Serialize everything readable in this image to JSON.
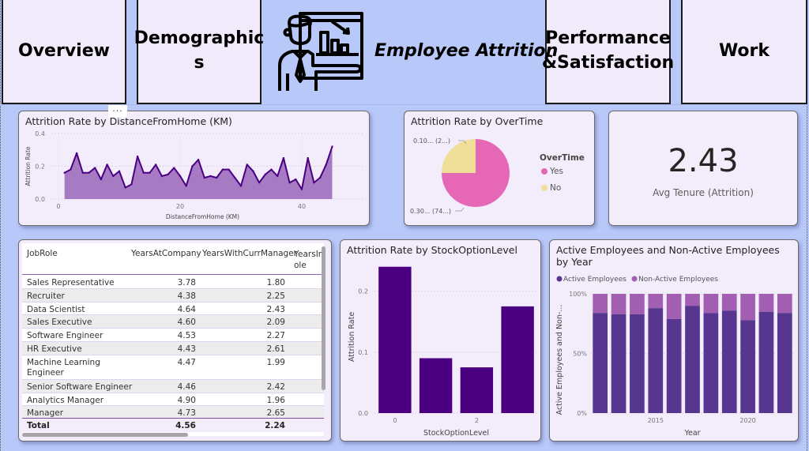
{
  "nav": {
    "overview": "Overview",
    "demographics_line1": "Demographic",
    "demographics_line2": "s",
    "performance_line1": "Performance",
    "performance_line2": "&Satisfaction",
    "work": "Work"
  },
  "header": {
    "title": "Employee Attrition",
    "icon": "presenter-chart-icon"
  },
  "more_options": "...",
  "kpi": {
    "value": "2.43",
    "label": "Avg Tenure (Attrition)"
  },
  "colors": {
    "page_bg": "#b8c8f8",
    "card_bg": "#f2ecfb",
    "line": "#4b0082",
    "area": "#a77bc4",
    "pie_yes": "#e667b5",
    "pie_no": "#efdf98",
    "bar": "#4b0082",
    "active": "#56368f",
    "non_active": "#a25fb1"
  },
  "table": {
    "headers": [
      "JobRole",
      "YearsAtCompany",
      "YearsWithCurrManager",
      "YearsIn",
      "ole"
    ],
    "rows": [
      {
        "role": "Sales Representative",
        "years_company": "3.78",
        "years_manager": "1.80"
      },
      {
        "role": "Recruiter",
        "years_company": "4.38",
        "years_manager": "2.25"
      },
      {
        "role": "Data Scientist",
        "years_company": "4.64",
        "years_manager": "2.43"
      },
      {
        "role": "Sales Executive",
        "years_company": "4.60",
        "years_manager": "2.09"
      },
      {
        "role": "Software Engineer",
        "years_company": "4.53",
        "years_manager": "2.27"
      },
      {
        "role": "HR Executive",
        "years_company": "4.43",
        "years_manager": "2.61"
      },
      {
        "role": "Machine Learning",
        "role2": "Engineer",
        "years_company": "4.47",
        "years_manager": "1.99"
      },
      {
        "role": "Senior Software Engineer",
        "years_company": "4.46",
        "years_manager": "2.42"
      },
      {
        "role": "Analytics Manager",
        "years_company": "4.90",
        "years_manager": "1.96"
      },
      {
        "role": "Manager",
        "years_company": "4.73",
        "years_manager": "2.65"
      }
    ],
    "total": {
      "label": "Total",
      "years_company": "4.56",
      "years_manager": "2.24"
    }
  },
  "chart_data": [
    {
      "type": "area",
      "title": "Attrition Rate by DistanceFromHome (KM)",
      "xlabel": "DistanceFromHome (KM)",
      "ylabel": "Attrition Rate",
      "xlim": [
        0,
        50
      ],
      "ylim": [
        0,
        0.4
      ],
      "x_ticks": [
        "0",
        "20",
        "40"
      ],
      "y_ticks": [
        "0.0",
        "0.2",
        "0.4"
      ],
      "grid": true,
      "x": [
        1,
        2,
        3,
        4,
        5,
        6,
        7,
        8,
        9,
        10,
        11,
        12,
        13,
        14,
        15,
        16,
        17,
        18,
        19,
        20,
        21,
        22,
        23,
        24,
        25,
        26,
        27,
        28,
        29,
        30,
        31,
        32,
        33,
        34,
        35,
        36,
        37,
        38,
        39,
        40,
        41,
        42,
        43,
        44,
        45
      ],
      "values": [
        0.16,
        0.18,
        0.28,
        0.16,
        0.16,
        0.19,
        0.12,
        0.21,
        0.14,
        0.17,
        0.07,
        0.09,
        0.26,
        0.16,
        0.16,
        0.21,
        0.14,
        0.15,
        0.19,
        0.14,
        0.08,
        0.2,
        0.24,
        0.13,
        0.14,
        0.13,
        0.18,
        0.18,
        0.13,
        0.08,
        0.21,
        0.17,
        0.1,
        0.15,
        0.18,
        0.14,
        0.25,
        0.1,
        0.12,
        0.06,
        0.25,
        0.1,
        0.13,
        0.21,
        0.32
      ]
    },
    {
      "type": "pie",
      "title": "Attrition Rate by OverTime",
      "legend_title": "OverTime",
      "legend_position": "right",
      "categories": [
        "Yes",
        "No"
      ],
      "values": [
        0.3,
        0.1
      ],
      "share_percent": [
        74,
        26
      ],
      "data_labels": [
        "0.30... (74...)",
        "0.10... (2...)"
      ]
    },
    {
      "type": "bar",
      "title": "Attrition Rate by StockOptionLevel",
      "xlabel": "StockOptionLevel",
      "ylabel": "Attrition Rate",
      "categories": [
        "0",
        "1",
        "2",
        "3"
      ],
      "x_ticks": [
        "0",
        "2"
      ],
      "values": [
        0.24,
        0.09,
        0.075,
        0.175
      ],
      "ylim": [
        0,
        0.25
      ],
      "y_ticks": [
        "0.0",
        "0.1",
        "0.2"
      ],
      "grid": true
    },
    {
      "type": "bar",
      "stacked": "100%",
      "title": "Active Employees and Non-Active Employees by Year",
      "xlabel": "Year",
      "ylabel": "Active Employees and Non-...",
      "categories": [
        "2012",
        "2013",
        "2014",
        "2015",
        "2016",
        "2017",
        "2018",
        "2019",
        "2020",
        "2021",
        "2022"
      ],
      "x_ticks": [
        "2015",
        "2020"
      ],
      "y_ticks": [
        "0%",
        "50%",
        "100%"
      ],
      "legend_position": "top-left",
      "series": [
        {
          "name": "Active Employees",
          "values": [
            84,
            83,
            83,
            88,
            79,
            90,
            84,
            86,
            78,
            85,
            84
          ]
        },
        {
          "name": "Non-Active Employees",
          "values": [
            16,
            17,
            17,
            12,
            21,
            10,
            16,
            14,
            22,
            15,
            16
          ]
        }
      ]
    }
  ]
}
